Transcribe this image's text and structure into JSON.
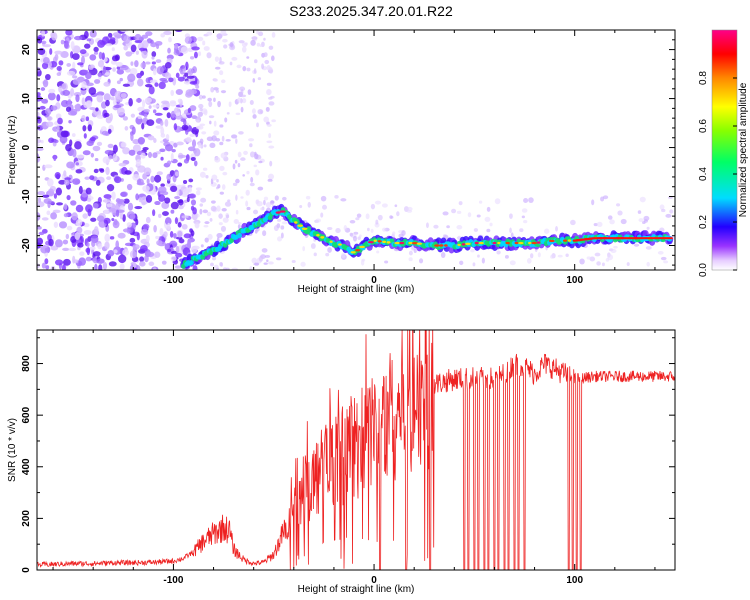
{
  "title": "S233.2025.347.20.01.R22",
  "chart_data": [
    {
      "type": "heatmap",
      "subtype": "spectrogram",
      "xlabel": "Height of straight line (km)",
      "ylabel": "Frequency (Hz)",
      "xlim": [
        -168,
        150
      ],
      "ylim": [
        -25,
        24
      ],
      "x_ticks": [
        -100,
        0,
        100
      ],
      "y_ticks": [
        -20,
        -10,
        0,
        10,
        20
      ],
      "colorbar": {
        "label": "Normalized spectral amplitude",
        "range": [
          0,
          1
        ],
        "ticks": [
          0.0,
          0.2,
          0.4,
          0.6,
          0.8
        ],
        "colormap": "rainbow (white-violet-blue-cyan-green-yellow-orange-red-magenta)"
      },
      "ridge": {
        "x": [
          -95,
          -88,
          -80,
          -72,
          -65,
          -58,
          -50,
          -45,
          -40,
          -35,
          -30,
          -25,
          -20,
          -15,
          -10,
          -5,
          0,
          10,
          20,
          30,
          40,
          50,
          60,
          70,
          80,
          90,
          100,
          110,
          120,
          130,
          140,
          148
        ],
        "y": [
          -24,
          -22.5,
          -21,
          -19,
          -17,
          -15.5,
          -13.5,
          -13,
          -15,
          -16.5,
          -17.5,
          -18.5,
          -19.5,
          -20,
          -21.5,
          -20,
          -19,
          -19.5,
          -19.5,
          -20,
          -20,
          -19.5,
          -19.5,
          -19.5,
          -19.5,
          -19,
          -19,
          -18.5,
          -18.5,
          -18.5,
          -18.5,
          -18.5
        ]
      }
    },
    {
      "type": "line",
      "xlabel": "Height of straight line (km)",
      "ylabel": "SNR (10 * v/v)",
      "xlim": [
        -168,
        150
      ],
      "ylim": [
        0,
        930
      ],
      "x_ticks": [
        -100,
        0,
        100
      ],
      "y_ticks": [
        0,
        200,
        400,
        600,
        800
      ],
      "color": "#ee2222",
      "series": [
        {
          "x": [
            -168,
            -160,
            -150,
            -140,
            -130,
            -120,
            -110,
            -100,
            -95,
            -90,
            -85,
            -80,
            -75,
            -72,
            -70,
            -65,
            -60,
            -55,
            -50,
            -45,
            -40,
            -35,
            -30,
            -25,
            -20,
            -15,
            -10,
            -5,
            0,
            5,
            10,
            15,
            20,
            25,
            30,
            35,
            40,
            45,
            50,
            55,
            60,
            65,
            70,
            75,
            80,
            85,
            90,
            95,
            100,
            105,
            110,
            120,
            130,
            140,
            150
          ],
          "y": [
            20,
            22,
            25,
            25,
            28,
            28,
            30,
            35,
            45,
            70,
            110,
            140,
            165,
            150,
            80,
            40,
            25,
            30,
            60,
            150,
            240,
            310,
            350,
            390,
            420,
            450,
            480,
            510,
            540,
            580,
            620,
            650,
            680,
            700,
            720,
            730,
            740,
            740,
            745,
            745,
            740,
            760,
            800,
            790,
            760,
            800,
            780,
            760,
            740,
            745,
            750,
            750,
            750,
            750,
            750
          ]
        }
      ],
      "dropouts_x": [
        3,
        16,
        28,
        45,
        47,
        50,
        52,
        55,
        57,
        60,
        62,
        65,
        67,
        70,
        72,
        75,
        97,
        99,
        101,
        103
      ]
    }
  ]
}
